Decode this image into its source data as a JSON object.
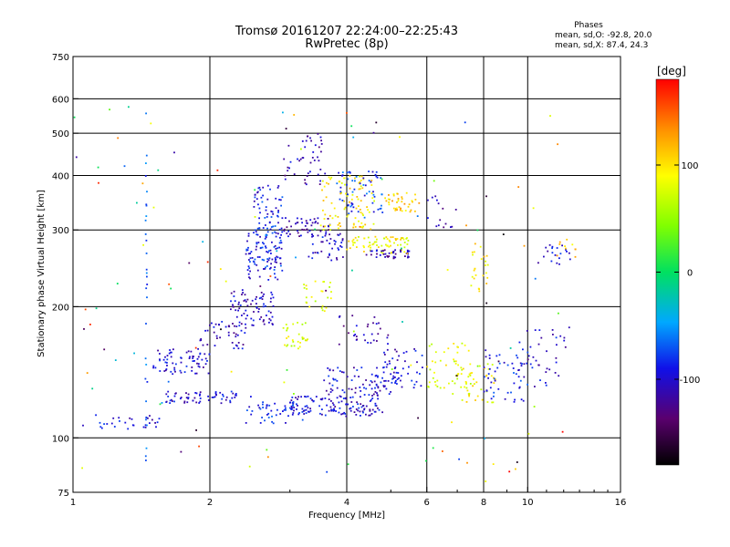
{
  "chart_data": {
    "type": "scatter",
    "title": "Tromsø 20161207 22:24:00–22:25:43",
    "subtitle": "RwPretec (8p)",
    "xlabel": "Frequency [MHz]",
    "ylabel": "Stationary phase Virtual Height [km]",
    "x_scale": "log",
    "y_scale": "log",
    "xlim": [
      1,
      16
    ],
    "ylim": [
      75,
      750
    ],
    "x_ticks": [
      1,
      2,
      4,
      6,
      8,
      10,
      16
    ],
    "x_gridlines": [
      2,
      4,
      6,
      8,
      10
    ],
    "y_ticks": [
      75,
      100,
      200,
      300,
      400,
      500,
      600,
      750
    ],
    "y_gridlines": [
      100,
      200,
      300,
      400,
      500,
      600
    ],
    "grid": true,
    "phases_info": {
      "heading": "Phases",
      "line_o": "mean, sd,O: -92.8, 20.0",
      "line_x": "mean, sd,X:  87.4, 24.3"
    },
    "colorbar": {
      "label": "[deg]",
      "range": [
        -180,
        180
      ],
      "ticks": [
        100,
        0,
        -100
      ],
      "colormap": "rainbow"
    },
    "clusters": [
      {
        "f0": 1.05,
        "f1": 1.55,
        "h0": 104,
        "h1": 114,
        "phase": -95,
        "n": 30
      },
      {
        "f0": 1.5,
        "f1": 2.0,
        "h0": 140,
        "h1": 160,
        "phase": -100,
        "n": 70
      },
      {
        "f0": 1.6,
        "f1": 2.3,
        "h0": 120,
        "h1": 128,
        "phase": -100,
        "n": 60
      },
      {
        "f0": 1.9,
        "f1": 2.4,
        "h0": 160,
        "h1": 185,
        "phase": -105,
        "n": 40
      },
      {
        "f0": 2.2,
        "f1": 2.8,
        "h0": 180,
        "h1": 220,
        "phase": -105,
        "n": 80
      },
      {
        "f0": 2.4,
        "f1": 2.9,
        "h0": 230,
        "h1": 300,
        "phase": -90,
        "n": 110
      },
      {
        "f0": 2.5,
        "f1": 2.9,
        "h0": 300,
        "h1": 380,
        "phase": -90,
        "n": 60
      },
      {
        "f0": 2.4,
        "f1": 3.2,
        "h0": 108,
        "h1": 120,
        "phase": -85,
        "n": 45
      },
      {
        "f0": 2.9,
        "f1": 3.3,
        "h0": 160,
        "h1": 185,
        "phase": 80,
        "n": 30
      },
      {
        "f0": 3.2,
        "f1": 3.7,
        "h0": 195,
        "h1": 230,
        "phase": 80,
        "n": 25
      },
      {
        "f0": 2.9,
        "f1": 3.7,
        "h0": 290,
        "h1": 320,
        "phase": -110,
        "n": 50
      },
      {
        "f0": 2.9,
        "f1": 3.6,
        "h0": 380,
        "h1": 500,
        "phase": -110,
        "n": 45
      },
      {
        "f0": 3.3,
        "f1": 4.0,
        "h0": 255,
        "h1": 300,
        "phase": -100,
        "n": 40
      },
      {
        "f0": 3.5,
        "f1": 4.6,
        "h0": 300,
        "h1": 400,
        "phase": 95,
        "n": 90
      },
      {
        "f0": 3.8,
        "f1": 4.8,
        "h0": 320,
        "h1": 410,
        "phase": -80,
        "n": 60
      },
      {
        "f0": 4.0,
        "f1": 5.5,
        "h0": 265,
        "h1": 290,
        "phase": 90,
        "n": 70
      },
      {
        "f0": 4.4,
        "f1": 5.5,
        "h0": 258,
        "h1": 270,
        "phase": -110,
        "n": 40
      },
      {
        "f0": 4.8,
        "f1": 5.8,
        "h0": 330,
        "h1": 365,
        "phase": 110,
        "n": 40
      },
      {
        "f0": 3.0,
        "f1": 4.8,
        "h0": 112,
        "h1": 125,
        "phase": -100,
        "n": 130
      },
      {
        "f0": 3.5,
        "f1": 5.2,
        "h0": 125,
        "h1": 145,
        "phase": -100,
        "n": 80
      },
      {
        "f0": 4.6,
        "f1": 5.9,
        "h0": 130,
        "h1": 160,
        "phase": -100,
        "n": 50
      },
      {
        "f0": 3.8,
        "f1": 5.0,
        "h0": 160,
        "h1": 195,
        "phase": -110,
        "n": 30
      },
      {
        "f0": 6.0,
        "f1": 7.5,
        "h0": 130,
        "h1": 165,
        "phase": 80,
        "n": 50
      },
      {
        "f0": 7.0,
        "f1": 8.5,
        "h0": 120,
        "h1": 150,
        "phase": 90,
        "n": 40
      },
      {
        "f0": 8.0,
        "f1": 10.0,
        "h0": 120,
        "h1": 160,
        "phase": -90,
        "n": 50
      },
      {
        "f0": 9.5,
        "f1": 12.5,
        "h0": 130,
        "h1": 180,
        "phase": -100,
        "n": 40
      },
      {
        "f0": 7.5,
        "f1": 8.2,
        "h0": 215,
        "h1": 280,
        "phase": 100,
        "n": 25
      },
      {
        "f0": 6.0,
        "f1": 7.0,
        "h0": 300,
        "h1": 360,
        "phase": -110,
        "n": 15
      },
      {
        "f0": 10.5,
        "f1": 12.5,
        "h0": 250,
        "h1": 280,
        "phase": -100,
        "n": 20
      },
      {
        "f0": 11.5,
        "f1": 12.8,
        "h0": 260,
        "h1": 290,
        "phase": 110,
        "n": 10
      },
      {
        "f0": 1.0,
        "f1": 12.0,
        "h0": 78,
        "h1": 600,
        "phase": 0,
        "n": 120
      }
    ],
    "lines": [
      {
        "f": 1.45,
        "h0": 88,
        "h1": 610,
        "phase": -70,
        "n": 30
      }
    ]
  }
}
